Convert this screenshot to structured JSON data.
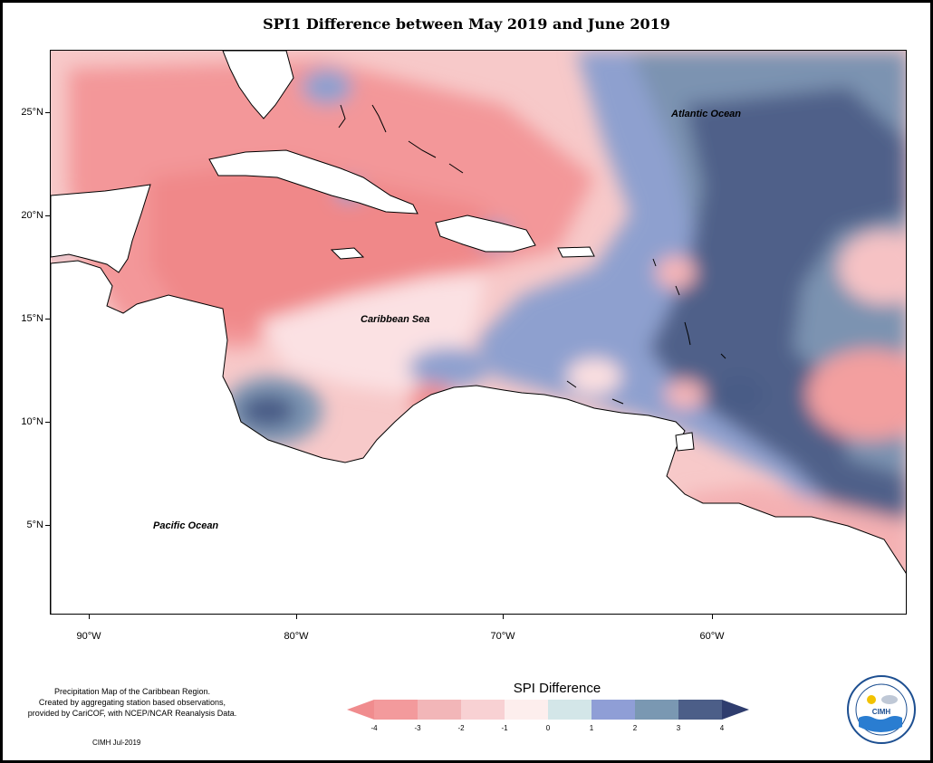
{
  "title": "SPI1 Difference between May 2019 and June 2019",
  "map": {
    "lat_ticks": [
      "25°N",
      "20°N",
      "15°N",
      "10°N",
      "5°N"
    ],
    "lon_ticks": [
      "90°W",
      "80°W",
      "70°W",
      "60°W"
    ],
    "labels": {
      "atlantic": "Atlantic Ocean",
      "caribbean": "Caribbean Sea",
      "pacific": "Pacific Ocean"
    }
  },
  "legend": {
    "title": "SPI Difference",
    "ticks": [
      "-4",
      "-3",
      "-2",
      "-1",
      "0",
      "1",
      "2",
      "3",
      "4"
    ],
    "colors": [
      "#f08c8e",
      "#f2a6a8",
      "#f5c6c7",
      "#fbe1e3",
      "#fdf4f3",
      "#cfe3e6",
      "#8e9bd6",
      "#7a98b2",
      "#4a5c86"
    ]
  },
  "footnote": {
    "lines": [
      "Precipitation Map of the Caribbean Region.",
      "Created by aggregating station based observations,",
      "provided by CariCOF, with NCEP/NCAR Reanalysis Data."
    ],
    "credit": "CIMH Jul-2019"
  },
  "logo": {
    "name": "CIMH",
    "ring_text": "Caribbean Institute for Meteorology and Hydrology"
  }
}
